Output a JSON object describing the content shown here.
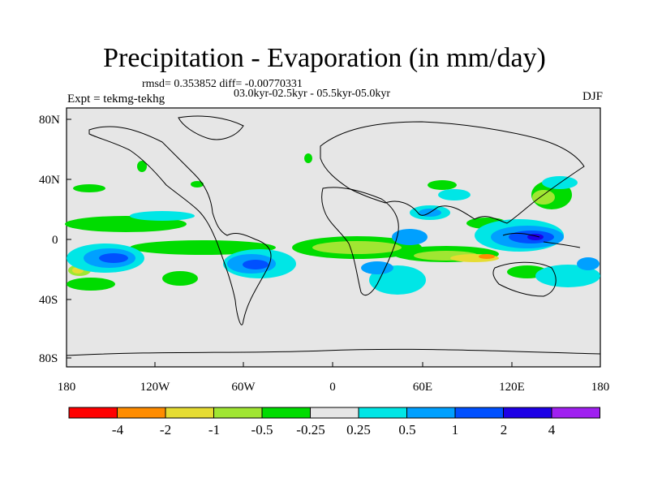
{
  "title": "Precipitation - Evaporation (in mm/day)",
  "stats_text": "rmsd= 0.353852 diff= -0.00770331",
  "period_text": "03.0kyr-02.5kyr - 05.5kyr-05.0kyr",
  "experiment_text": "Expt = tekmg-tekhg",
  "season": "DJF",
  "lat_labels": [
    "80N",
    "40N",
    "0",
    "40S",
    "80S"
  ],
  "lon_labels": [
    "180",
    "120W",
    "60W",
    "0",
    "60E",
    "120E",
    "180"
  ],
  "colorbar": {
    "colors": [
      "#ff0000",
      "#ff8c00",
      "#e6dc32",
      "#a0e632",
      "#00dc00",
      "#e6e6e6",
      "#00e6e6",
      "#00a0ff",
      "#0050ff",
      "#1e00e6",
      "#a020f0"
    ],
    "labels": [
      "-4",
      "-2",
      "-1",
      "-0.5",
      "-0.25",
      "0.25",
      "0.5",
      "1",
      "2",
      "4"
    ]
  }
}
